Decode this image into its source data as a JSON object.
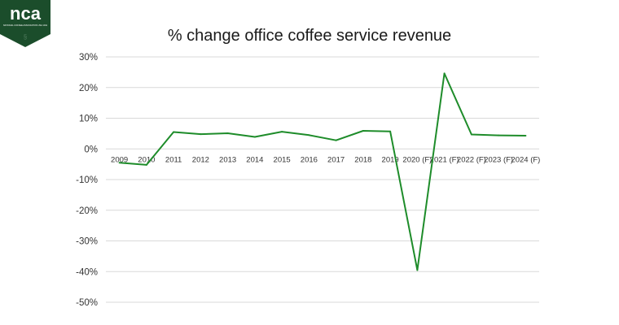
{
  "logo": {
    "text": "nca",
    "tagline": "NATIONAL COFFEE ASSOCIATION USA 1911",
    "color": "#1b4d2b"
  },
  "chart_data": {
    "type": "line",
    "title": "% change office coffee service revenue",
    "xlabel": "",
    "ylabel": "",
    "categories": [
      "2009",
      "2010",
      "2011",
      "2012",
      "2013",
      "2014",
      "2015",
      "2016",
      "2017",
      "2018",
      "2019",
      "2020 (F)",
      "2021 (F)",
      "2022 (F)",
      "2023 (F)",
      "2024 (F)"
    ],
    "series": [
      {
        "name": "% change",
        "color": "#1e8c2a",
        "values": [
          -4.5,
          -5.2,
          5.5,
          4.8,
          5.1,
          3.9,
          5.6,
          4.5,
          2.8,
          5.9,
          5.7,
          -39.5,
          24.6,
          4.7,
          4.4,
          4.3
        ]
      }
    ],
    "ylim": [
      -50,
      30
    ],
    "yticks": [
      30,
      20,
      10,
      0,
      -10,
      -20,
      -30,
      -40,
      -50
    ],
    "ytick_labels": [
      "30%",
      "20%",
      "10%",
      "0%",
      "-10%",
      "-20%",
      "-30%",
      "-40%",
      "-50%"
    ],
    "grid": true,
    "gridColor": "#d9d9d9"
  }
}
